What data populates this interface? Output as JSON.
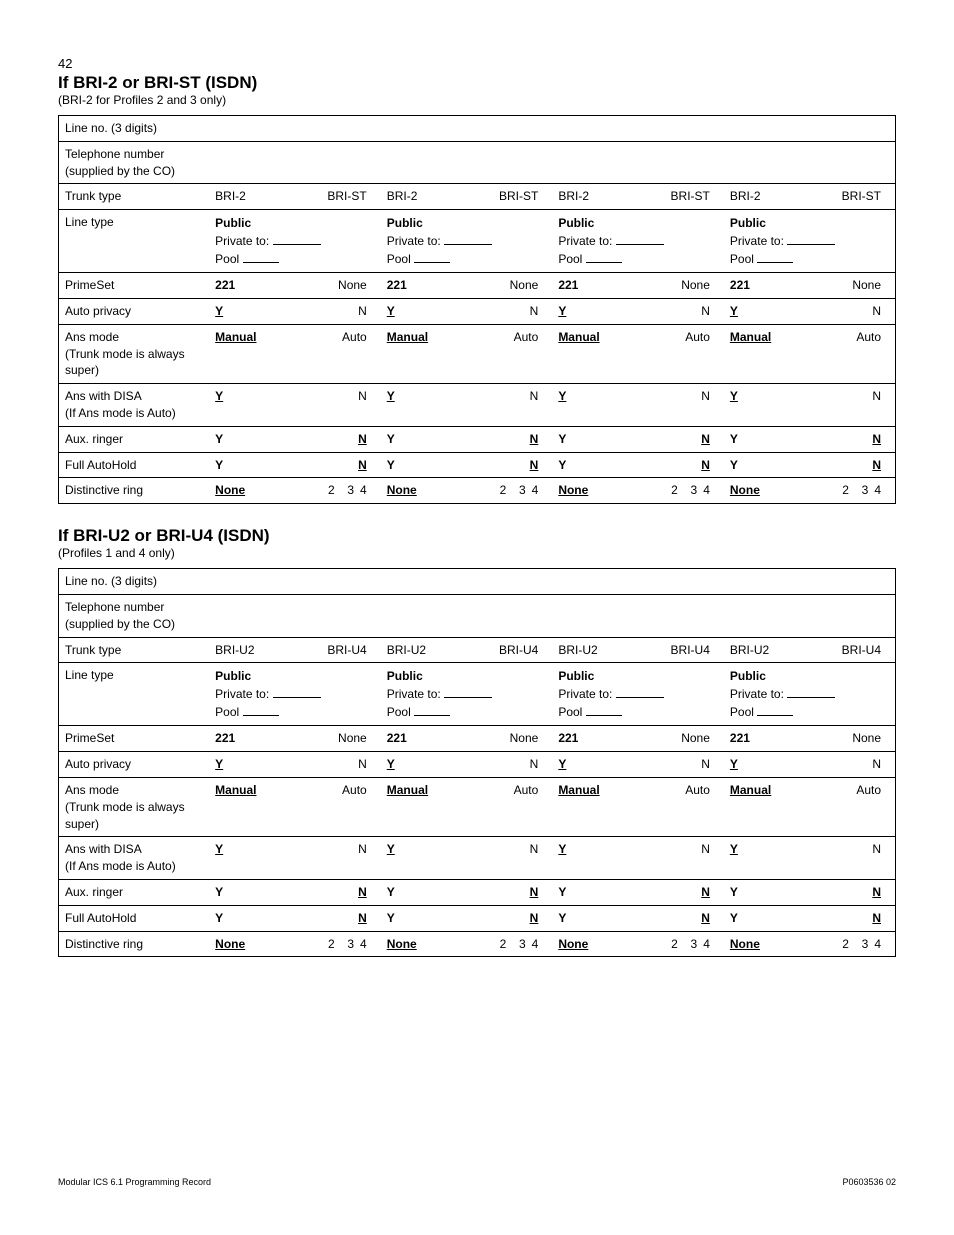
{
  "page_number": "42",
  "footer_left": "Modular ICS 6.1 Programming Record",
  "footer_right": "P0603536  02",
  "sections": [
    {
      "title": "If BRI-2 or BRI-ST (ISDN)",
      "subtitle": "(BRI-2 for Profiles 2 and 3 only)",
      "trunk_a": "BRI-2",
      "trunk_b": "BRI-ST"
    },
    {
      "title": "If BRI-U2 or BRI-U4 (ISDN)",
      "subtitle": "(Profiles 1 and 4 only)",
      "trunk_a": "BRI-U2",
      "trunk_b": "BRI-U4"
    }
  ],
  "row_labels": {
    "line_no": "Line no. (3 digits)",
    "tel_no": "Telephone number (supplied by the CO)",
    "trunk_type": "Trunk type",
    "line_type": "Line type",
    "primeset": "PrimeSet",
    "auto_privacy": "Auto privacy",
    "ans_mode": "Ans mode",
    "ans_mode_note": "(Trunk mode is always super)",
    "ans_disa": "Ans with DISA",
    "ans_disa_note": "(If Ans mode is Auto)",
    "aux_ringer": "Aux. ringer",
    "full_autohold": "Full AutoHold",
    "distinctive": "Distinctive ring"
  },
  "values": {
    "public": "Public",
    "private_to": "Private to:",
    "pool": "Pool",
    "v221": "221",
    "none": "None",
    "Y": "Y",
    "N": "N",
    "manual": "Manual",
    "auto": "Auto",
    "d2": "2",
    "d3": "3",
    "d4": "4"
  }
}
